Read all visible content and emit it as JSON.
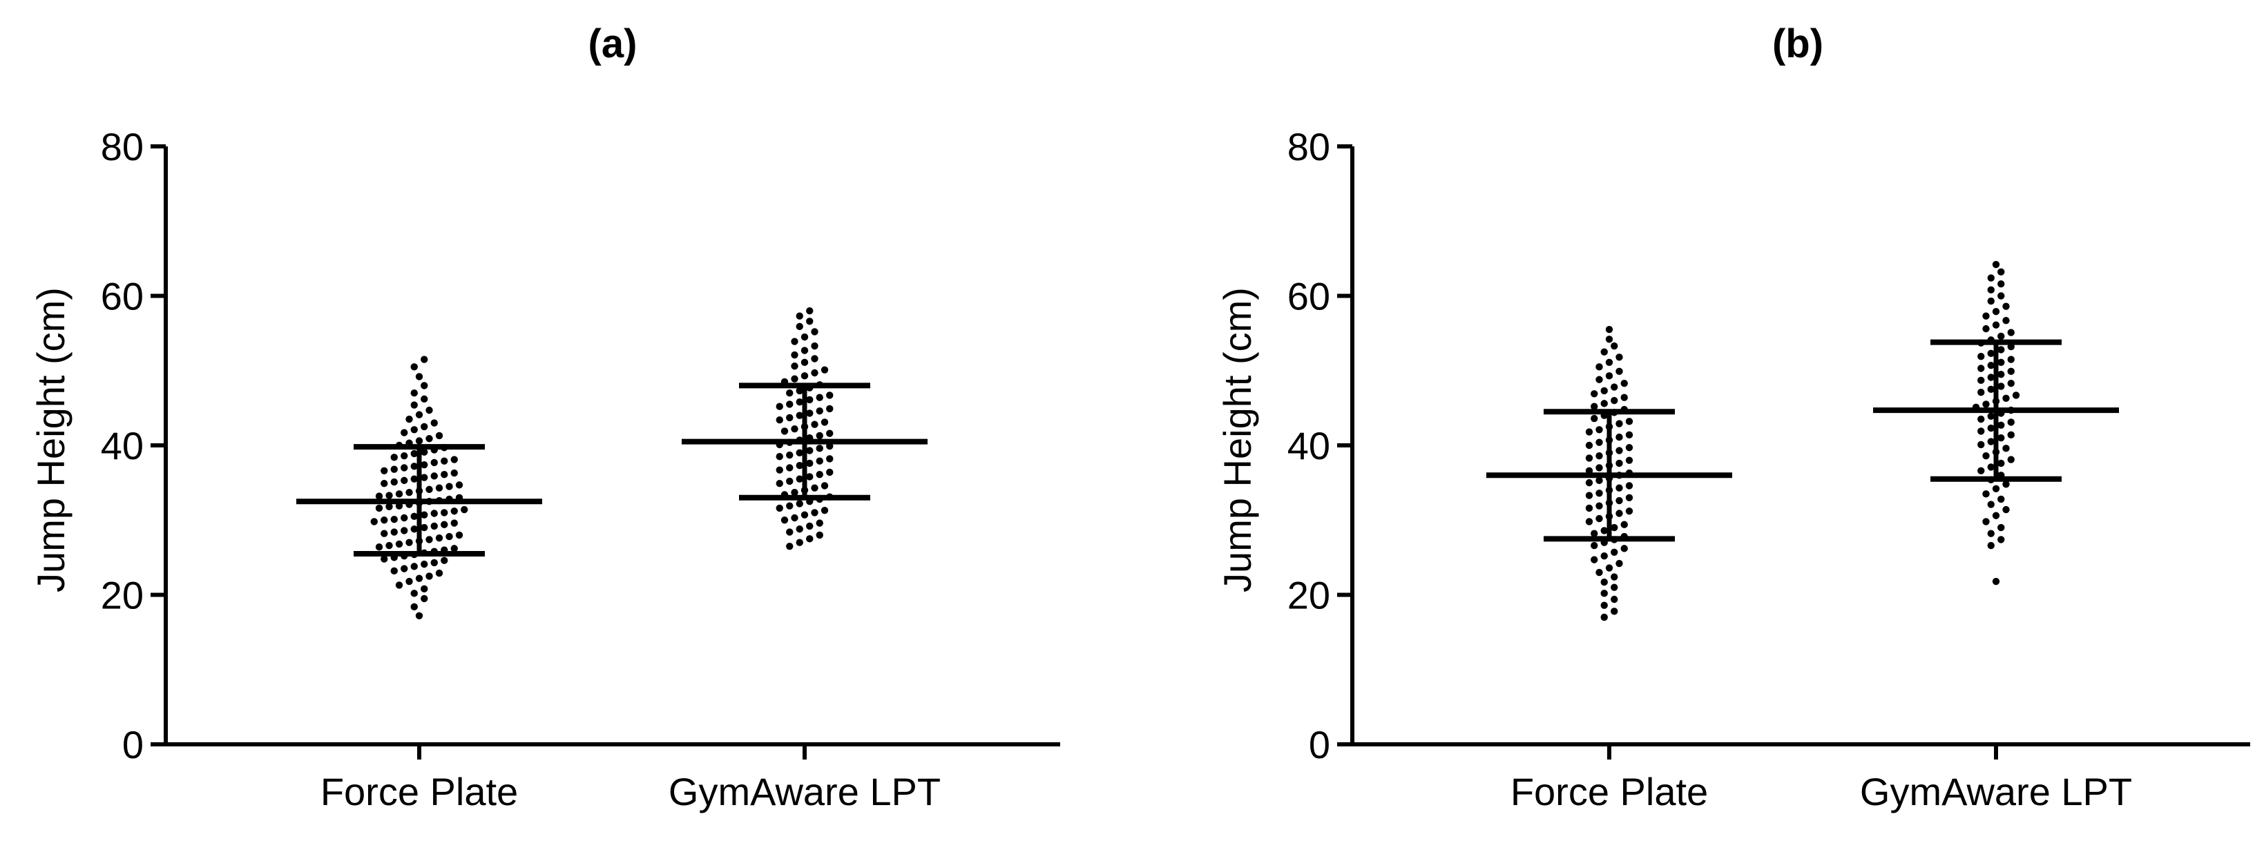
{
  "chart_data": [
    {
      "type": "scatter",
      "title": "(a)",
      "ylabel": "Jump Height (cm)",
      "ylim": [
        0,
        80
      ],
      "yticks": [
        0,
        20,
        40,
        60,
        80
      ],
      "categories": [
        "Force Plate",
        "GymAware LPT"
      ],
      "summary": [
        {
          "category": "Force Plate",
          "mean": 32.5,
          "sd_low": 25.5,
          "sd_high": 39.8
        },
        {
          "category": "GymAware LPT",
          "mean": 40.5,
          "sd_low": 33.0,
          "sd_high": 48.0
        }
      ],
      "series": [
        {
          "values": [
            17.2,
            18.4,
            19.5,
            20.2,
            20.8,
            21.3,
            21.8,
            22.2,
            22.5,
            22.9,
            23.2,
            23.5,
            23.8,
            24.1,
            24.3,
            24.6,
            24.8,
            25.0,
            25.2,
            25.4,
            25.6,
            25.8,
            26.0,
            26.2,
            26.4,
            26.6,
            26.8,
            27.0,
            27.2,
            27.4,
            27.6,
            27.8,
            28.0,
            28.2,
            28.4,
            28.6,
            28.8,
            29.0,
            29.2,
            29.4,
            29.6,
            29.8,
            30.0,
            30.1,
            30.3,
            30.5,
            30.7,
            30.9,
            31.0,
            31.2,
            31.4,
            31.6,
            31.8,
            31.9,
            32.1,
            32.3,
            32.5,
            32.6,
            32.8,
            33.0,
            33.2,
            33.3,
            33.5,
            33.7,
            33.9,
            34.1,
            34.3,
            34.5,
            34.7,
            34.9,
            35.1,
            35.3,
            35.5,
            35.7,
            35.9,
            36.1,
            36.3,
            36.6,
            36.8,
            37.0,
            37.2,
            37.4,
            37.7,
            37.9,
            38.1,
            38.4,
            38.6,
            38.9,
            39.1,
            39.4,
            39.7,
            40.0,
            40.3,
            40.6,
            40.9,
            41.3,
            41.7,
            42.1,
            42.5,
            43.0,
            43.5,
            44.1,
            44.7,
            45.4,
            46.2,
            47.0,
            48.0,
            49.2,
            50.5,
            51.5
          ]
        },
        {
          "values": [
            26.5,
            27.0,
            27.5,
            28.0,
            28.4,
            28.8,
            29.2,
            29.6,
            30.0,
            30.3,
            30.7,
            31.0,
            31.3,
            31.6,
            31.9,
            32.2,
            32.5,
            32.8,
            33.1,
            33.4,
            33.7,
            34.0,
            34.3,
            34.6,
            34.9,
            35.2,
            35.5,
            35.8,
            36.1,
            36.4,
            36.7,
            37.0,
            37.3,
            37.6,
            37.9,
            38.2,
            38.5,
            38.7,
            39.0,
            39.3,
            39.6,
            39.9,
            40.1,
            40.4,
            40.7,
            41.0,
            41.3,
            41.6,
            41.9,
            42.2,
            42.5,
            42.8,
            43.1,
            43.4,
            43.7,
            44.0,
            44.3,
            44.6,
            44.9,
            45.2,
            45.5,
            45.8,
            46.1,
            46.4,
            46.7,
            47.0,
            47.3,
            47.7,
            48.1,
            48.5,
            48.9,
            49.3,
            49.7,
            50.1,
            50.6,
            51.1,
            51.6,
            52.1,
            52.7,
            53.3,
            53.9,
            54.5,
            55.2,
            55.9,
            56.6,
            57.3,
            58.0
          ]
        }
      ]
    },
    {
      "type": "scatter",
      "title": "(b)",
      "ylabel": "Jump Height (cm)",
      "ylim": [
        0,
        80
      ],
      "yticks": [
        0,
        20,
        40,
        60,
        80
      ],
      "categories": [
        "Force Plate",
        "GymAware LPT"
      ],
      "summary": [
        {
          "category": "Force Plate",
          "mean": 36.0,
          "sd_low": 27.5,
          "sd_high": 44.5
        },
        {
          "category": "GymAware LPT",
          "mean": 44.7,
          "sd_low": 35.5,
          "sd_high": 53.8
        }
      ],
      "series": [
        {
          "values": [
            17.0,
            17.8,
            18.6,
            19.4,
            20.2,
            21.0,
            21.7,
            22.4,
            23.0,
            23.6,
            24.2,
            24.7,
            25.2,
            25.7,
            26.2,
            26.6,
            27.0,
            27.4,
            27.8,
            28.2,
            28.6,
            29.0,
            29.4,
            29.8,
            30.2,
            30.5,
            30.9,
            31.2,
            31.6,
            31.9,
            32.3,
            32.6,
            33.0,
            33.3,
            33.6,
            34.0,
            34.3,
            34.6,
            35.0,
            35.3,
            35.6,
            36.0,
            36.3,
            36.6,
            37.0,
            37.3,
            37.6,
            38.0,
            38.3,
            38.6,
            39.0,
            39.3,
            39.7,
            40.0,
            40.4,
            40.7,
            41.1,
            41.4,
            41.8,
            42.1,
            42.5,
            42.9,
            43.2,
            43.6,
            44.0,
            44.4,
            44.8,
            45.2,
            45.6,
            46.0,
            46.4,
            46.9,
            47.3,
            47.8,
            48.3,
            48.8,
            49.3,
            49.9,
            50.5,
            51.1,
            51.8,
            52.5,
            53.3,
            54.2,
            55.5
          ]
        },
        {
          "values": [
            21.8,
            26.6,
            27.4,
            28.2,
            29.0,
            29.8,
            30.6,
            31.4,
            32.1,
            32.8,
            33.5,
            34.2,
            34.8,
            35.4,
            36.0,
            36.6,
            37.1,
            37.6,
            38.1,
            38.6,
            39.1,
            39.6,
            40.1,
            40.5,
            41.0,
            41.4,
            41.9,
            42.3,
            42.7,
            43.1,
            43.5,
            43.9,
            44.3,
            44.7,
            45.1,
            45.5,
            45.9,
            46.3,
            46.7,
            47.1,
            47.5,
            47.9,
            48.3,
            48.7,
            49.1,
            49.5,
            49.9,
            50.3,
            50.7,
            51.1,
            51.5,
            51.9,
            52.3,
            52.8,
            53.2,
            53.7,
            54.1,
            54.6,
            55.1,
            55.6,
            56.1,
            56.7,
            57.3,
            57.9,
            58.6,
            59.3,
            60.0,
            60.8,
            61.6,
            62.4,
            63.2,
            64.2
          ]
        }
      ]
    }
  ]
}
